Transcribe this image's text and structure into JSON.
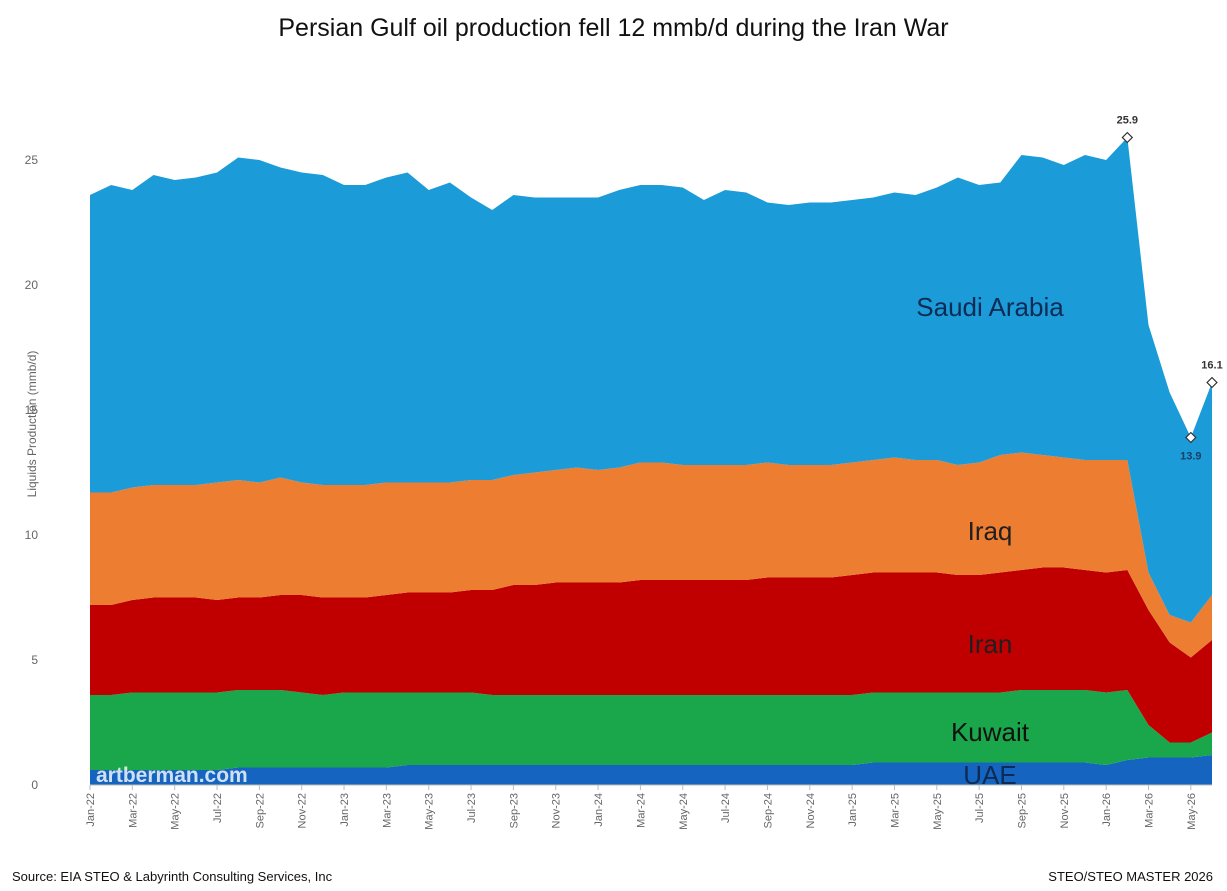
{
  "chart_data": {
    "type": "area",
    "stacked": true,
    "title": "Persian Gulf oil production fell 12 mmb/d during the Iran War",
    "ylabel": "Liquids Production (mmb/d)",
    "xlabel": "",
    "ylim": [
      0,
      27
    ],
    "yticks": [
      0,
      5,
      10,
      15,
      20,
      25
    ],
    "grid": false,
    "legend": "inline labels",
    "x": [
      "Jan-22",
      "Feb-22",
      "Mar-22",
      "Apr-22",
      "May-22",
      "Jun-22",
      "Jul-22",
      "Aug-22",
      "Sep-22",
      "Oct-22",
      "Nov-22",
      "Dec-22",
      "Jan-23",
      "Feb-23",
      "Mar-23",
      "Apr-23",
      "May-23",
      "Jun-23",
      "Jul-23",
      "Aug-23",
      "Sep-23",
      "Oct-23",
      "Nov-23",
      "Dec-23",
      "Jan-24",
      "Feb-24",
      "Mar-24",
      "Apr-24",
      "May-24",
      "Jun-24",
      "Jul-24",
      "Aug-24",
      "Sep-24",
      "Oct-24",
      "Nov-24",
      "Dec-24",
      "Jan-25",
      "Feb-25",
      "Mar-25",
      "Apr-25",
      "May-25",
      "Jun-25",
      "Jul-25",
      "Aug-25",
      "Sep-25",
      "Oct-25",
      "Nov-25",
      "Dec-25",
      "Jan-26",
      "Feb-26",
      "Mar-26",
      "Apr-26",
      "May-26",
      "Jun-26"
    ],
    "x_tick_labels": [
      "Jan-22",
      "Mar-22",
      "May-22",
      "Jul-22",
      "Sep-22",
      "Nov-22",
      "Jan-23",
      "Mar-23",
      "May-23",
      "Jul-23",
      "Sep-23",
      "Nov-23",
      "Jan-24",
      "Mar-24",
      "May-24",
      "Jul-24",
      "Sep-24",
      "Nov-24",
      "Jan-25",
      "Mar-25",
      "May-25",
      "Jul-25",
      "Sep-25",
      "Nov-25",
      "Jan-26",
      "Mar-26",
      "May-26"
    ],
    "series": [
      {
        "name": "UAE",
        "color": "#1565c0",
        "values": [
          0.6,
          0.6,
          0.6,
          0.6,
          0.6,
          0.6,
          0.6,
          0.7,
          0.7,
          0.7,
          0.7,
          0.7,
          0.7,
          0.7,
          0.7,
          0.8,
          0.8,
          0.8,
          0.8,
          0.8,
          0.8,
          0.8,
          0.8,
          0.8,
          0.8,
          0.8,
          0.8,
          0.8,
          0.8,
          0.8,
          0.8,
          0.8,
          0.8,
          0.8,
          0.8,
          0.8,
          0.8,
          0.9,
          0.9,
          0.9,
          0.9,
          0.9,
          0.9,
          0.9,
          0.9,
          0.9,
          0.9,
          0.9,
          0.8,
          1.0,
          1.1,
          1.1,
          1.1,
          1.2
        ]
      },
      {
        "name": "Kuwait",
        "color": "#1aa64a",
        "values": [
          3.0,
          3.0,
          3.1,
          3.1,
          3.1,
          3.1,
          3.1,
          3.1,
          3.1,
          3.1,
          3.0,
          2.9,
          3.0,
          3.0,
          3.0,
          2.9,
          2.9,
          2.9,
          2.9,
          2.8,
          2.8,
          2.8,
          2.8,
          2.8,
          2.8,
          2.8,
          2.8,
          2.8,
          2.8,
          2.8,
          2.8,
          2.8,
          2.8,
          2.8,
          2.8,
          2.8,
          2.8,
          2.8,
          2.8,
          2.8,
          2.8,
          2.8,
          2.8,
          2.8,
          2.9,
          2.9,
          2.9,
          2.9,
          2.9,
          2.8,
          1.3,
          0.6,
          0.6,
          0.9
        ]
      },
      {
        "name": "Iran",
        "color": "#c00000",
        "values": [
          3.6,
          3.6,
          3.7,
          3.8,
          3.8,
          3.8,
          3.7,
          3.7,
          3.7,
          3.8,
          3.9,
          3.9,
          3.8,
          3.8,
          3.9,
          4.0,
          4.0,
          4.0,
          4.1,
          4.2,
          4.4,
          4.4,
          4.5,
          4.5,
          4.5,
          4.5,
          4.6,
          4.6,
          4.6,
          4.6,
          4.6,
          4.6,
          4.7,
          4.7,
          4.7,
          4.7,
          4.8,
          4.8,
          4.8,
          4.8,
          4.8,
          4.7,
          4.7,
          4.8,
          4.8,
          4.9,
          4.9,
          4.8,
          4.8,
          4.8,
          4.6,
          4.0,
          3.4,
          3.7
        ]
      },
      {
        "name": "Iraq",
        "color": "#ed7d31",
        "values": [
          4.5,
          4.5,
          4.5,
          4.5,
          4.5,
          4.5,
          4.7,
          4.7,
          4.6,
          4.7,
          4.5,
          4.5,
          4.5,
          4.5,
          4.5,
          4.4,
          4.4,
          4.4,
          4.4,
          4.4,
          4.4,
          4.5,
          4.5,
          4.6,
          4.5,
          4.6,
          4.7,
          4.7,
          4.6,
          4.6,
          4.6,
          4.6,
          4.6,
          4.5,
          4.5,
          4.5,
          4.5,
          4.5,
          4.6,
          4.5,
          4.5,
          4.4,
          4.5,
          4.7,
          4.7,
          4.5,
          4.4,
          4.4,
          4.5,
          4.4,
          1.5,
          1.1,
          1.4,
          1.8
        ]
      },
      {
        "name": "Saudi Arabia",
        "color": "#1b9bd7",
        "values": [
          11.9,
          12.3,
          11.9,
          12.4,
          12.2,
          12.3,
          12.4,
          12.9,
          12.9,
          12.4,
          12.4,
          12.4,
          12.0,
          12.0,
          12.2,
          12.4,
          11.7,
          12.0,
          11.3,
          10.8,
          11.2,
          11.0,
          10.9,
          10.8,
          10.9,
          11.1,
          11.1,
          11.1,
          11.1,
          10.6,
          11.0,
          10.9,
          10.4,
          10.4,
          10.5,
          10.5,
          10.5,
          10.5,
          10.6,
          10.6,
          10.9,
          11.5,
          11.1,
          10.9,
          11.9,
          11.9,
          11.7,
          12.2,
          12.0,
          12.9,
          9.9,
          8.9,
          7.4,
          8.5
        ]
      }
    ],
    "totals_labelled": [
      {
        "x": "Feb-26",
        "total": 25.9,
        "label": "25.9"
      },
      {
        "x": "May-26",
        "total": 13.9,
        "label": "13.9"
      },
      {
        "x": "Jun-26",
        "total": 16.1,
        "label": "16.1"
      }
    ],
    "annotations": [
      "Saudi Arabia",
      "Iraq",
      "Iran",
      "Kuwait",
      "UAE"
    ],
    "label_colors": {
      "Saudi Arabia": "#0d2b55",
      "Iraq": "#1f1f1f",
      "Iran": "#1f1f1f",
      "Kuwait": "#111111",
      "UAE": "#0d2b55"
    }
  },
  "watermark": "artberman.com",
  "footer": {
    "source": "Source: EIA STEO & Labyrinth Consulting Services, Inc",
    "master": "STEO/STEO MASTER 2026"
  }
}
